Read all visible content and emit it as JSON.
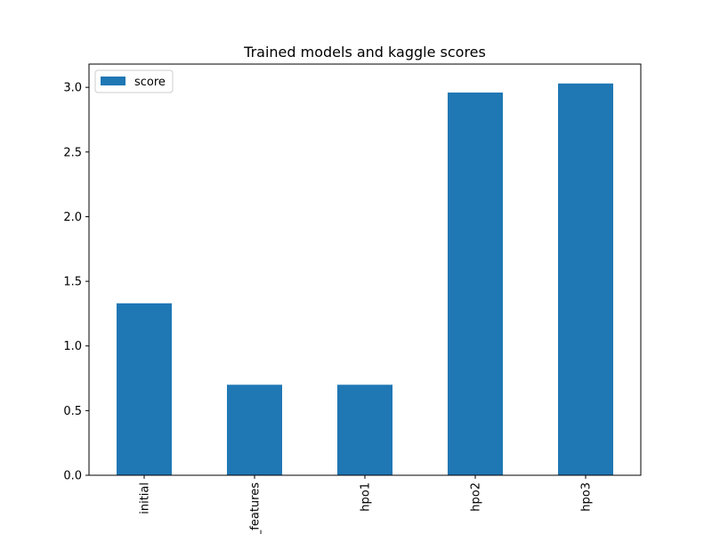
{
  "chart_data": {
    "type": "bar",
    "title": "Trained models and kaggle scores",
    "xlabel": "",
    "ylabel": "",
    "categories": [
      "initial",
      "add_features",
      "hpo1",
      "hpo2",
      "hpo3"
    ],
    "series": [
      {
        "name": "score",
        "values": [
          1.33,
          0.7,
          0.7,
          2.96,
          3.03
        ]
      }
    ],
    "ylim": [
      0,
      3.18
    ],
    "yticks": [
      0.0,
      0.5,
      1.0,
      1.5,
      2.0,
      2.5,
      3.0
    ],
    "ytick_labels": [
      "0.0",
      "0.5",
      "1.0",
      "1.5",
      "2.0",
      "2.5",
      "3.0"
    ],
    "xtick_rotation": "vertical",
    "grid": false,
    "legend_position": "top-left",
    "bar_color": "#1f77b4"
  }
}
